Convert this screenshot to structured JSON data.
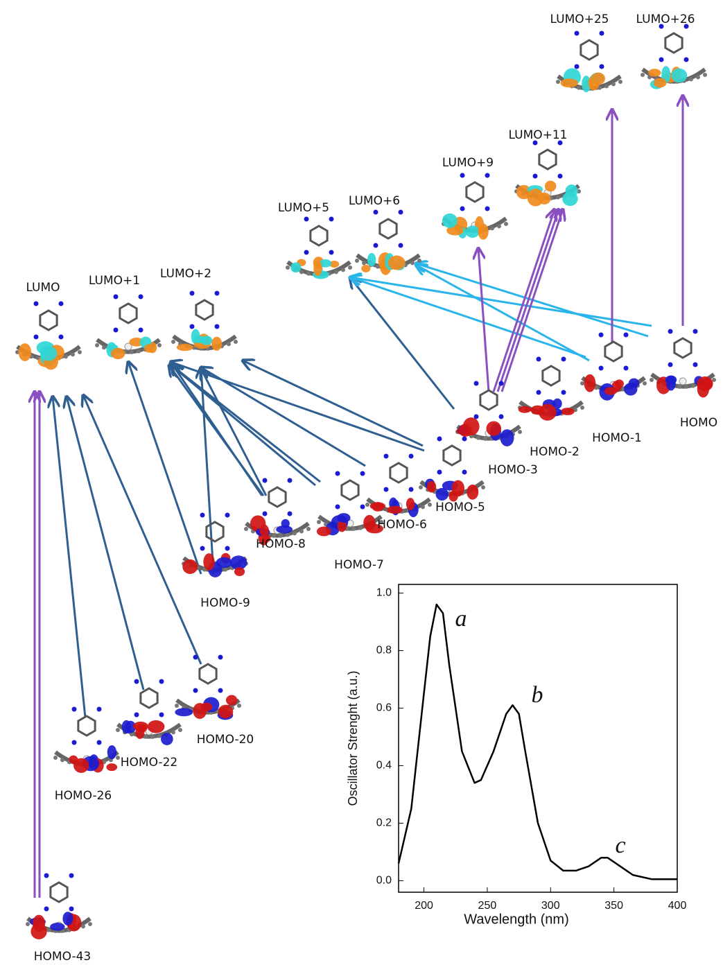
{
  "orbitals": [
    "LUMO+25",
    "LUMO+26",
    "LUMO+11",
    "LUMO+9",
    "LUMO+5",
    "LUMO+6",
    "LUMO",
    "LUMO+1",
    "LUMO+2",
    "HOMO",
    "HOMO-1",
    "HOMO-2",
    "HOMO-3",
    "HOMO-5",
    "HOMO-6",
    "HOMO-7",
    "HOMO-8",
    "HOMO-9",
    "HOMO-20",
    "HOMO-22",
    "HOMO-26",
    "HOMO-43"
  ],
  "chart_data": {
    "type": "line",
    "x_label": "Wavelength (nm)",
    "y_label": "Oscillator Strenght (a.u.)",
    "x": [
      180,
      190,
      200,
      205,
      210,
      215,
      220,
      230,
      240,
      245,
      255,
      265,
      270,
      275,
      280,
      290,
      300,
      310,
      320,
      330,
      340,
      345,
      355,
      365,
      380,
      400
    ],
    "values": [
      0.06,
      0.25,
      0.65,
      0.85,
      0.96,
      0.93,
      0.75,
      0.45,
      0.34,
      0.35,
      0.45,
      0.58,
      0.61,
      0.58,
      0.45,
      0.2,
      0.07,
      0.035,
      0.035,
      0.05,
      0.08,
      0.08,
      0.05,
      0.02,
      0.005,
      0.005
    ],
    "color": "#000000",
    "xlim": [
      180,
      400
    ],
    "ylim": [
      -0.04,
      1.03
    ],
    "xticks": [
      200,
      250,
      300,
      350,
      400
    ],
    "yticks": [
      {
        "value": 0,
        "label": "0.0"
      },
      0.2,
      0.4,
      0.6,
      0.8,
      {
        "value": 1,
        "label": "1.0"
      }
    ],
    "annotations": [
      "a",
      "b",
      "c"
    ]
  }
}
